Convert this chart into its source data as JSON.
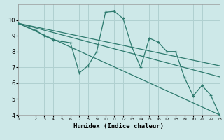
{
  "title": "",
  "xlabel": "Humidex (Indice chaleur)",
  "ylabel": "",
  "background_color": "#cde8e8",
  "grid_color": "#b0d0d0",
  "line_color": "#2d7a6e",
  "xlim": [
    0,
    23
  ],
  "ylim": [
    4,
    11
  ],
  "xticks": [
    0,
    2,
    3,
    4,
    5,
    6,
    7,
    8,
    9,
    10,
    11,
    12,
    13,
    14,
    15,
    16,
    17,
    18,
    19,
    20,
    21,
    22,
    23
  ],
  "yticks": [
    4,
    5,
    6,
    7,
    8,
    9,
    10
  ],
  "main_x": [
    0,
    2,
    3,
    4,
    5,
    6,
    7,
    8,
    9,
    10,
    11,
    12,
    13,
    14,
    15,
    16,
    17,
    18,
    19,
    20,
    21,
    22,
    23
  ],
  "main_y": [
    9.8,
    9.35,
    9.0,
    8.75,
    8.65,
    8.55,
    6.65,
    7.1,
    8.0,
    10.5,
    10.55,
    10.1,
    8.3,
    7.0,
    8.85,
    8.6,
    8.0,
    8.0,
    6.35,
    5.2,
    5.85,
    5.25,
    4.0
  ],
  "trend_lines": [
    {
      "x": [
        0,
        23
      ],
      "y": [
        9.8,
        4.0
      ]
    },
    {
      "x": [
        0,
        23
      ],
      "y": [
        9.8,
        6.4
      ]
    },
    {
      "x": [
        0,
        23
      ],
      "y": [
        9.8,
        7.1
      ]
    }
  ]
}
